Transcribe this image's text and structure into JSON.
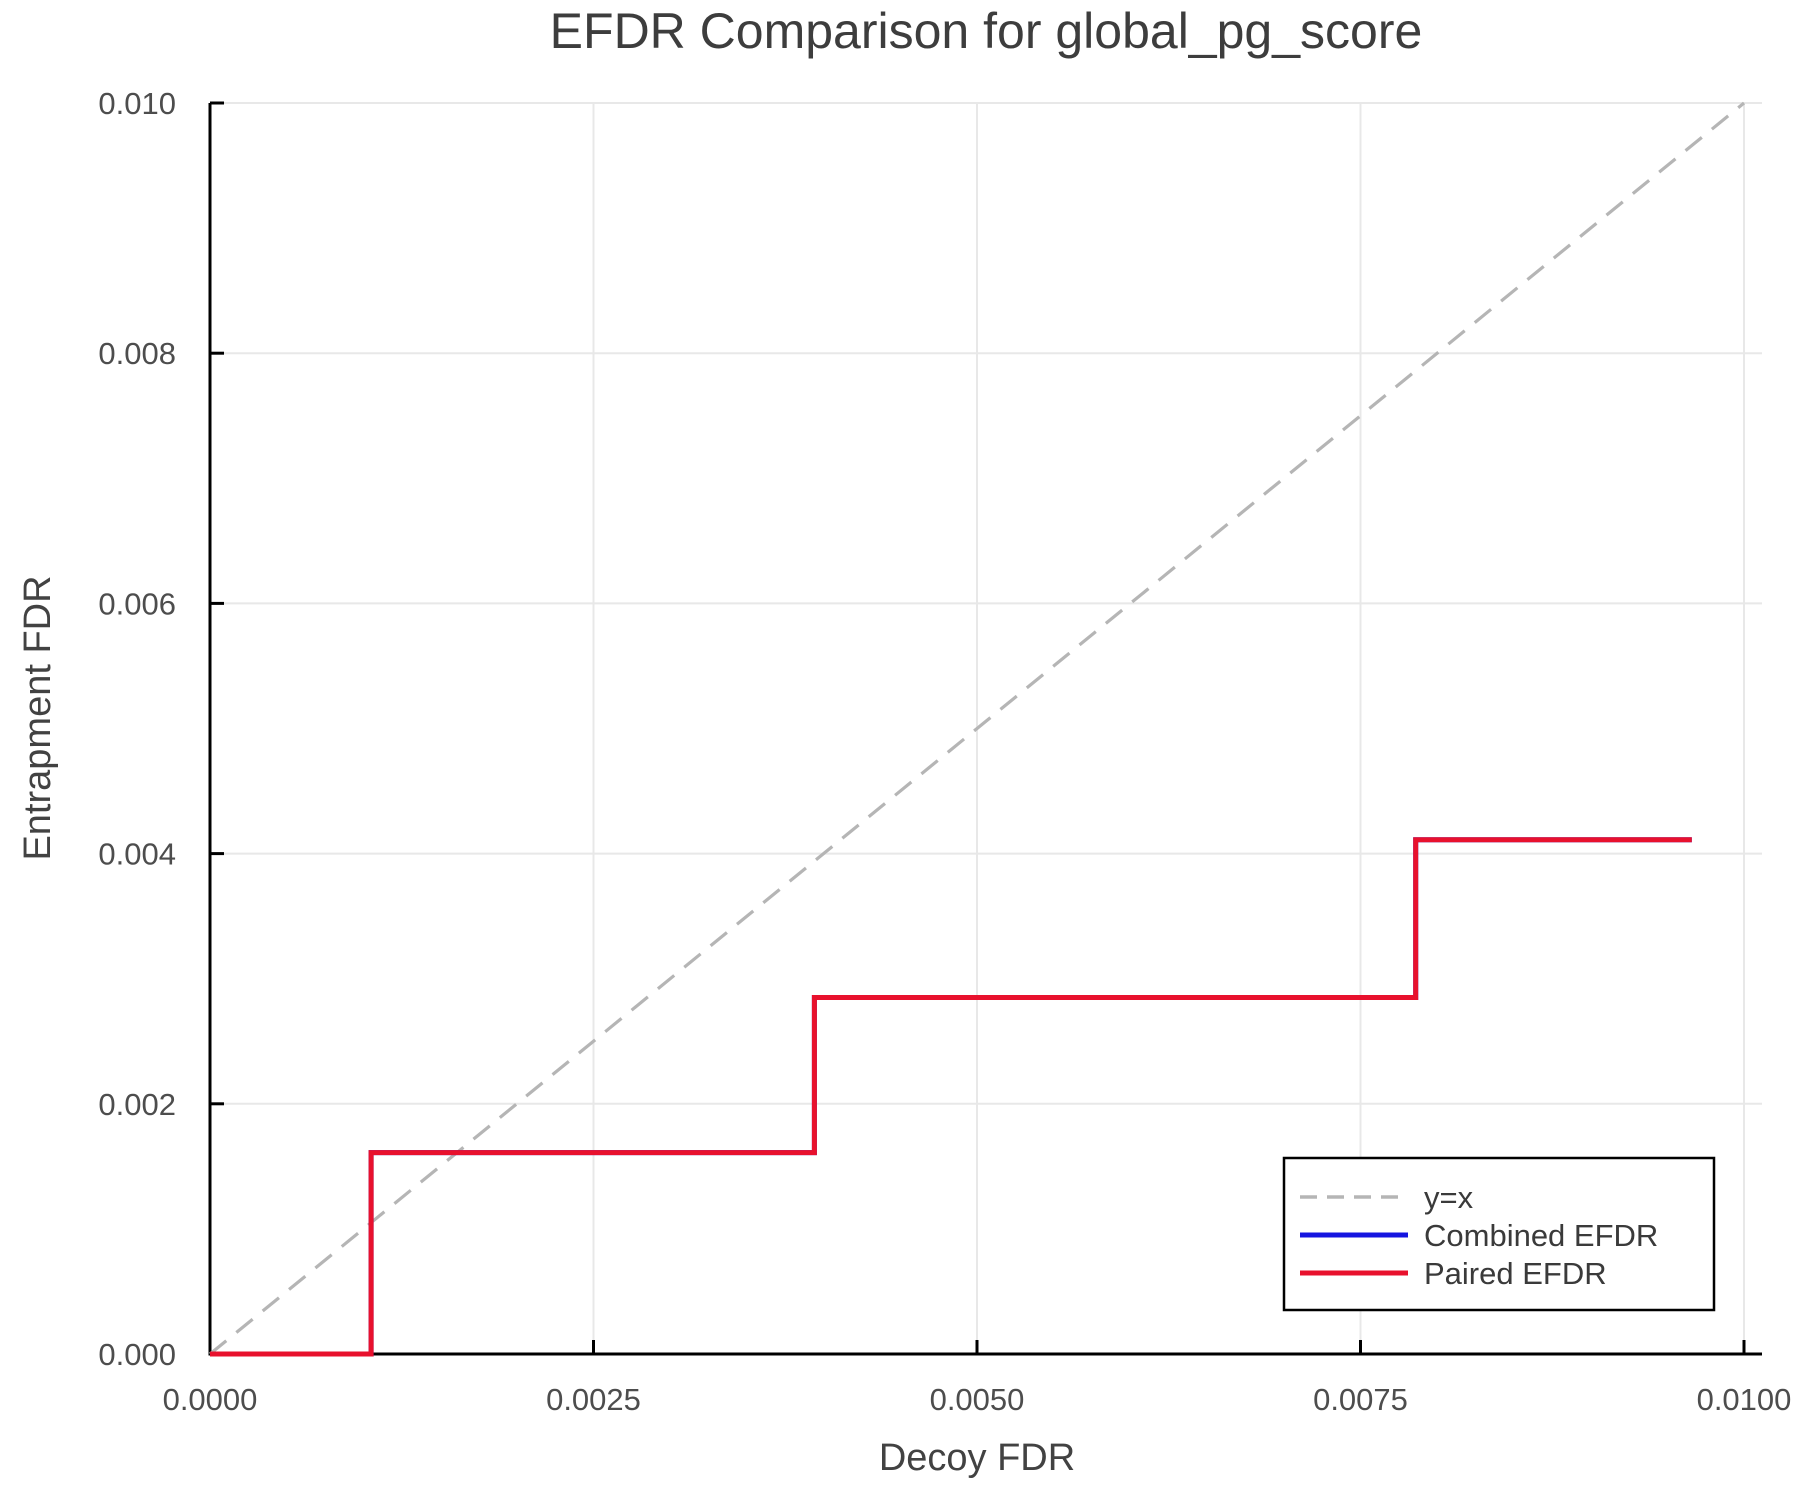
{
  "chart_data": {
    "type": "line",
    "title": "EFDR Comparison for global_pg_score",
    "xlabel": "Decoy FDR",
    "ylabel": "Entrapment FDR",
    "xlim": [
      0.0,
      0.01
    ],
    "ylim": [
      0.0,
      0.01
    ],
    "xticks": [
      0.0,
      0.0025,
      0.005,
      0.0075,
      0.01
    ],
    "xtick_labels": [
      "0.0000",
      "0.0025",
      "0.0050",
      "0.0075",
      "0.0100"
    ],
    "yticks": [
      0.0,
      0.002,
      0.004,
      0.006,
      0.008,
      0.01
    ],
    "ytick_labels": [
      "0.000",
      "0.002",
      "0.004",
      "0.006",
      "0.008",
      "0.010"
    ],
    "grid": true,
    "legend": {
      "position": "lower right",
      "entries": [
        "y=x",
        "Combined EFDR",
        "Paired EFDR"
      ]
    },
    "series": [
      {
        "name": "y=x",
        "kind": "reference-diagonal",
        "line_style": "dashed",
        "color": "#b5b5b5",
        "width": 3.2,
        "points": [
          [
            0.0,
            0.0
          ],
          [
            0.01,
            0.01
          ]
        ]
      },
      {
        "name": "Combined EFDR",
        "kind": "step",
        "line_style": "solid",
        "color": "#1515e0",
        "width": 5,
        "points": [
          [
            0.0,
            0.0
          ],
          [
            0.00105,
            0.0
          ],
          [
            0.00105,
            0.00161
          ],
          [
            0.00394,
            0.00161
          ],
          [
            0.00394,
            0.00285
          ],
          [
            0.00786,
            0.00285
          ],
          [
            0.00786,
            0.00411
          ],
          [
            0.00966,
            0.00411
          ]
        ]
      },
      {
        "name": "Paired EFDR",
        "kind": "step",
        "line_style": "solid",
        "color": "#e8112d",
        "width": 5,
        "points": [
          [
            0.0,
            0.0
          ],
          [
            0.00105,
            0.0
          ],
          [
            0.00105,
            0.00161
          ],
          [
            0.00394,
            0.00161
          ],
          [
            0.00394,
            0.00285
          ],
          [
            0.00786,
            0.00285
          ],
          [
            0.00786,
            0.00411
          ],
          [
            0.00966,
            0.00411
          ]
        ]
      }
    ],
    "colors": {
      "grid": "#e8e8e8",
      "spine": "#000000",
      "tick": "#000000",
      "legend_border": "#000000",
      "legend_background": "#ffffff"
    }
  }
}
